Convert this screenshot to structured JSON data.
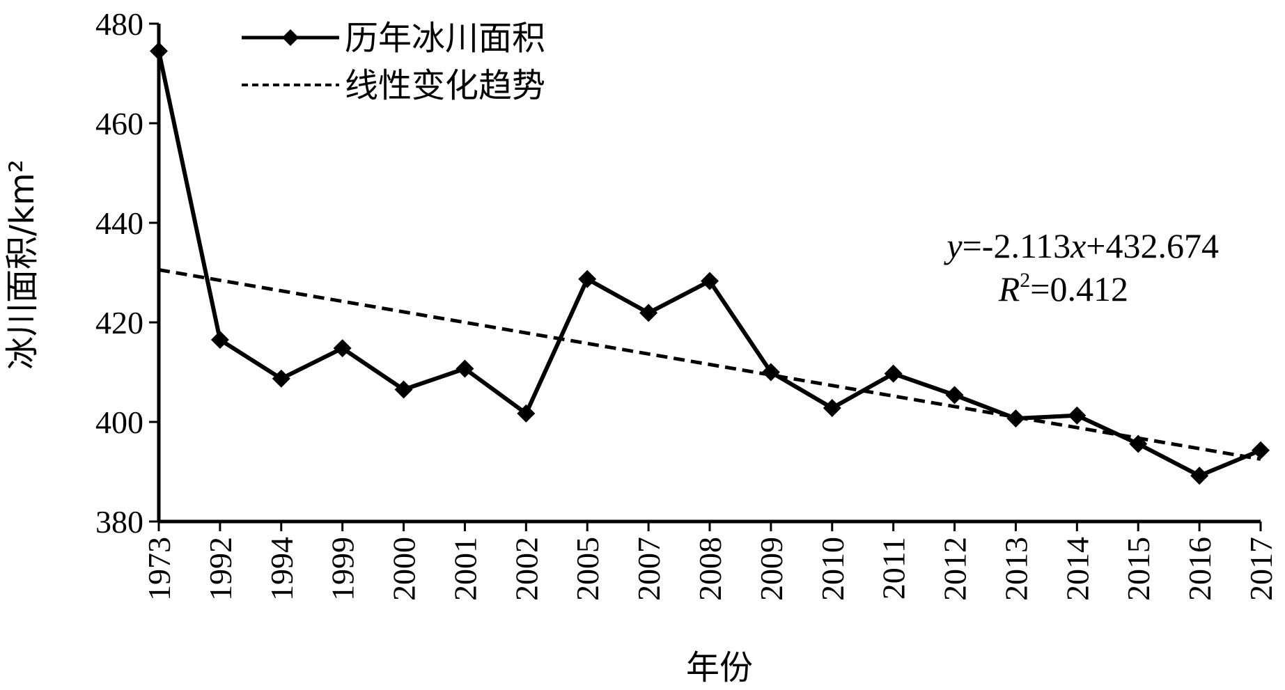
{
  "chart_data": {
    "type": "line",
    "categories": [
      "1973",
      "1992",
      "1994",
      "1999",
      "2000",
      "2001",
      "2002",
      "2005",
      "2007",
      "2008",
      "2009",
      "2010",
      "2011",
      "2012",
      "2013",
      "2014",
      "2015",
      "2016",
      "2017"
    ],
    "series": [
      {
        "name": "历年冰川面积",
        "style": "solid-diamond",
        "color": "#000000",
        "values": [
          474.5,
          416.5,
          408.7,
          414.8,
          406.5,
          410.7,
          401.7,
          428.7,
          421.9,
          428.3,
          410.0,
          402.8,
          409.7,
          405.4,
          400.7,
          401.3,
          395.6,
          389.2,
          394.3
        ]
      },
      {
        "name": "线性变化趋势",
        "style": "dashed",
        "color": "#000000",
        "values_from_fit": true
      }
    ],
    "trend": {
      "slope": -2.113,
      "intercept": 432.674
    },
    "annotation": {
      "equation_prefix": "y",
      "equation_mid": "=-2.113",
      "equation_var": "x",
      "equation_suffix": "+432.674",
      "r2_prefix": "R",
      "r2_sup": "2",
      "r2_suffix": "=0.412"
    },
    "xlabel": "年份",
    "ylabel": "冰川面积/km²",
    "ylim": [
      380,
      480
    ],
    "yticks": [
      "380",
      "400",
      "420",
      "440",
      "460",
      "480"
    ],
    "grid": false,
    "legend_position": "top-left"
  }
}
